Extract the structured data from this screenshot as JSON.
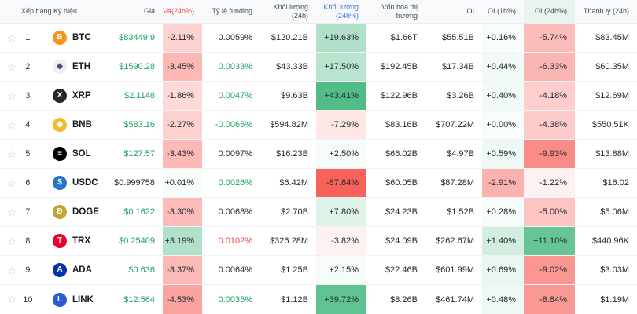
{
  "colors": {
    "green": "#1ea45f",
    "red": "#f5484d",
    "blue": "#4470e0",
    "dark": "#262b33",
    "cell_green_rgb": "34,170,102",
    "cell_red_rgb": "246,70,62",
    "header_highlight_bg": "#e9f4ee"
  },
  "tint_divisors": {
    "price_change": 9,
    "vol_change": 55,
    "oi_1h": 7,
    "oi_24h": 16
  },
  "table": {
    "columns": [
      {
        "label": "Xếp hạng",
        "align": "left",
        "first": true
      },
      {
        "label": "Ký hiệu",
        "align": "left",
        "second": true
      },
      {
        "label": "Giá"
      },
      {
        "label": "Giá(24h%)",
        "color": "red"
      },
      {
        "label": "Tỷ lệ funding"
      },
      {
        "label": "Khối lượng (24h)"
      },
      {
        "label": "Khối lượng (24h%)",
        "color": "blue"
      },
      {
        "label": "Vốn hóa thị trường"
      },
      {
        "label": "OI"
      },
      {
        "label": "OI (1h%)"
      },
      {
        "label": "OI (24h%)",
        "highlight": true
      },
      {
        "label": "Thanh lý (24h)"
      }
    ],
    "rows": [
      {
        "rank": "1",
        "symbol": "BTC",
        "icon": {
          "glyph": "B",
          "bg": "#f7931a",
          "fg": "#ffffff"
        },
        "price": "$83449.9",
        "price_color": "green",
        "funding_color": "dark",
        "price_change": "-2.11%",
        "funding": "0.0059%",
        "vol": "$120.21B",
        "vol_change": "+19.63%",
        "mcap": "$1.66T",
        "oi": "$55.51B",
        "oi_1h": "+0.16%",
        "oi_24h": "-5.74%",
        "liq": "$83.45M",
        "tints": {
          "price_change": -2.11,
          "vol_change": 19.63,
          "oi_1h": 0.16,
          "oi_24h": -5.74
        }
      },
      {
        "rank": "2",
        "symbol": "ETH",
        "icon": {
          "glyph": "◆",
          "bg": "#eceff5",
          "fg": "#4a5077"
        },
        "price": "$1590.28",
        "price_color": "green",
        "funding_color": "green",
        "price_change": "-3.45%",
        "funding": "0.0033%",
        "vol": "$43.33B",
        "vol_change": "+17.50%",
        "mcap": "$192.45B",
        "oi": "$17.34B",
        "oi_1h": "+0.44%",
        "oi_24h": "-6.33%",
        "liq": "$60.35M",
        "tints": {
          "price_change": -3.45,
          "vol_change": 17.5,
          "oi_1h": 0.44,
          "oi_24h": -6.33
        }
      },
      {
        "rank": "3",
        "symbol": "XRP",
        "icon": {
          "glyph": "X",
          "bg": "#23292f",
          "fg": "#ffffff"
        },
        "price": "$2.1148",
        "price_color": "green",
        "funding_color": "green",
        "price_change": "-1.86%",
        "funding": "0.0047%",
        "vol": "$9.63B",
        "vol_change": "+43.41%",
        "mcap": "$122.96B",
        "oi": "$3.26B",
        "oi_1h": "+0.40%",
        "oi_24h": "-4.18%",
        "liq": "$12.69M",
        "tints": {
          "price_change": -1.86,
          "vol_change": 43.41,
          "oi_1h": 0.4,
          "oi_24h": -4.18
        }
      },
      {
        "rank": "4",
        "symbol": "BNB",
        "icon": {
          "glyph": "◆",
          "bg": "#f3ba2f",
          "fg": "#ffffff"
        },
        "price": "$583.16",
        "price_color": "green",
        "funding_color": "green",
        "price_change": "-2.27%",
        "funding": "-0.0065%",
        "vol": "$594.82M",
        "vol_change": "-7.29%",
        "mcap": "$83.16B",
        "oi": "$707.22M",
        "oi_1h": "+0.00%",
        "oi_24h": "-4.38%",
        "liq": "$550.51K",
        "tints": {
          "price_change": -2.27,
          "vol_change": -7.29,
          "oi_1h": 0.0,
          "oi_24h": -4.38
        }
      },
      {
        "rank": "5",
        "symbol": "SOL",
        "icon": {
          "glyph": "≡",
          "bg": "#000000",
          "fg": "#ffffff"
        },
        "price": "$127.57",
        "price_color": "green",
        "funding_color": "dark",
        "price_change": "-3.43%",
        "funding": "0.0097%",
        "vol": "$16.23B",
        "vol_change": "+2.50%",
        "mcap": "$66.02B",
        "oi": "$4.97B",
        "oi_1h": "+0.59%",
        "oi_24h": "-9.93%",
        "liq": "$13.88M",
        "tints": {
          "price_change": -3.43,
          "vol_change": 2.5,
          "oi_1h": 0.59,
          "oi_24h": -9.93
        }
      },
      {
        "rank": "6",
        "symbol": "USDC",
        "icon": {
          "glyph": "$",
          "bg": "#2775ca",
          "fg": "#ffffff"
        },
        "price": "$0.999758",
        "price_color": "dark",
        "funding_color": "green",
        "price_change": "+0.01%",
        "funding": "0.0026%",
        "vol": "$6.42M",
        "vol_change": "-87.84%",
        "mcap": "$60.05B",
        "oi": "$87.28M",
        "oi_1h": "-2.91%",
        "oi_24h": "-1.22%",
        "liq": "$16.02",
        "tints": {
          "price_change": 0.01,
          "vol_change": -87.84,
          "oi_1h": -2.91,
          "oi_24h": -1.22
        }
      },
      {
        "rank": "7",
        "symbol": "DOGE",
        "icon": {
          "glyph": "Ð",
          "bg": "#c2a633",
          "fg": "#ffffff"
        },
        "price": "$0.1622",
        "price_color": "green",
        "funding_color": "dark",
        "price_change": "-3.30%",
        "funding": "0.0068%",
        "vol": "$2.70B",
        "vol_change": "+7.80%",
        "mcap": "$24.23B",
        "oi": "$1.52B",
        "oi_1h": "+0.28%",
        "oi_24h": "-5.00%",
        "liq": "$5.06M",
        "tints": {
          "price_change": -3.3,
          "vol_change": 7.8,
          "oi_1h": 0.28,
          "oi_24h": -5.0
        }
      },
      {
        "rank": "8",
        "symbol": "TRX",
        "icon": {
          "glyph": "T",
          "bg": "#ef0027",
          "fg": "#ffffff"
        },
        "price": "$0.25409",
        "price_color": "green",
        "funding_color": "red",
        "price_change": "+3.19%",
        "funding": "0.0102%",
        "vol": "$326.28M",
        "vol_change": "-3.82%",
        "mcap": "$24.09B",
        "oi": "$262.67M",
        "oi_1h": "+1.40%",
        "oi_24h": "+11.10%",
        "liq": "$440.96K",
        "tints": {
          "price_change": 3.19,
          "vol_change": -3.82,
          "oi_1h": 1.4,
          "oi_24h": 11.1
        }
      },
      {
        "rank": "9",
        "symbol": "ADA",
        "icon": {
          "glyph": "A",
          "bg": "#0033ad",
          "fg": "#ffffff"
        },
        "price": "$0.636",
        "price_color": "green",
        "funding_color": "dark",
        "price_change": "-3.37%",
        "funding": "0.0064%",
        "vol": "$1.25B",
        "vol_change": "+2.15%",
        "mcap": "$22.46B",
        "oi": "$601.99M",
        "oi_1h": "+0.69%",
        "oi_24h": "-9.02%",
        "liq": "$3.03M",
        "tints": {
          "price_change": -3.37,
          "vol_change": 2.15,
          "oi_1h": 0.69,
          "oi_24h": -9.02
        }
      },
      {
        "rank": "10",
        "symbol": "LINK",
        "icon": {
          "glyph": "L",
          "bg": "#2a5ada",
          "fg": "#ffffff"
        },
        "price": "$12.564",
        "price_color": "green",
        "funding_color": "green",
        "price_change": "-4.53%",
        "funding": "0.0035%",
        "vol": "$1.12B",
        "vol_change": "+39.72%",
        "mcap": "$8.26B",
        "oi": "$461.74M",
        "oi_1h": "+0.48%",
        "oi_24h": "-8.84%",
        "liq": "$1.19M",
        "tints": {
          "price_change": -4.53,
          "vol_change": 39.72,
          "oi_1h": 0.48,
          "oi_24h": -8.84
        }
      }
    ]
  }
}
